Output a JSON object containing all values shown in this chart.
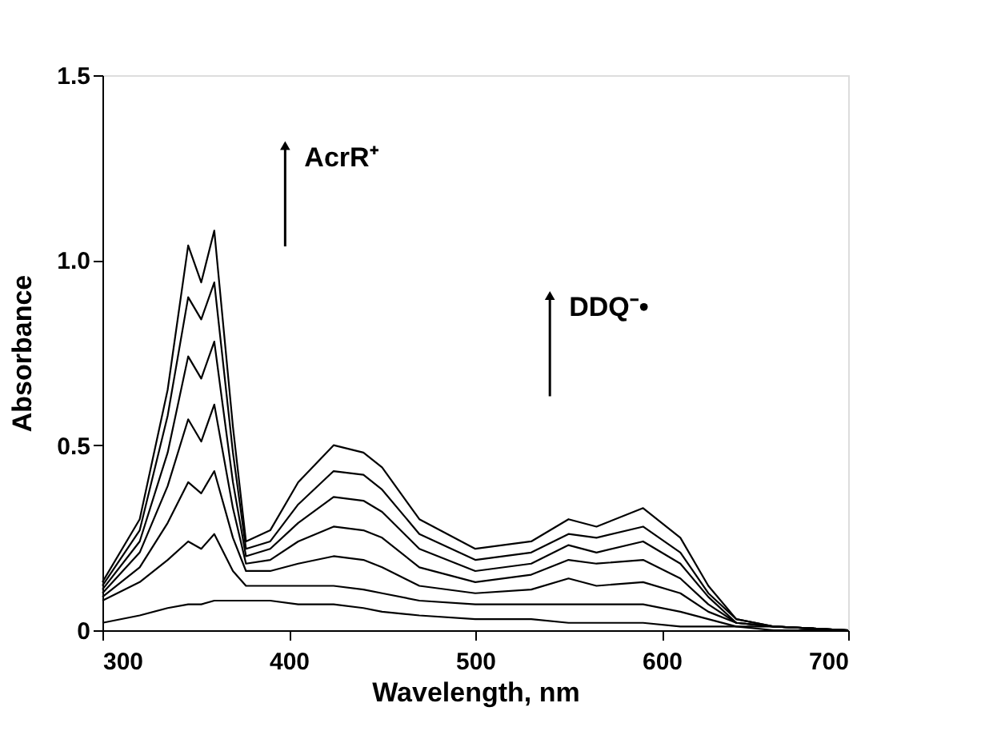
{
  "chart_data": {
    "type": "line",
    "xlabel": "Wavelength, nm",
    "ylabel": "Absorbance",
    "annotations": [
      "AcrR⁺",
      "DDQ⁻•"
    ],
    "x": [
      300,
      320,
      335,
      346,
      353,
      360,
      370,
      377,
      390,
      405,
      424,
      440,
      450,
      470,
      500,
      530,
      550,
      565,
      590,
      610,
      625,
      640,
      660,
      700
    ],
    "series": [
      {
        "color": "#000000",
        "values": [
          0.13,
          0.3,
          0.65,
          1.04,
          0.94,
          1.08,
          0.55,
          0.24,
          0.27,
          0.4,
          0.5,
          0.48,
          0.44,
          0.3,
          0.22,
          0.24,
          0.3,
          0.28,
          0.33,
          0.25,
          0.12,
          0.03,
          0.01,
          0
        ]
      },
      {
        "color": "#000000",
        "values": [
          0.12,
          0.27,
          0.58,
          0.9,
          0.84,
          0.94,
          0.48,
          0.22,
          0.24,
          0.34,
          0.43,
          0.42,
          0.38,
          0.26,
          0.19,
          0.21,
          0.26,
          0.25,
          0.28,
          0.21,
          0.1,
          0.03,
          0.01,
          0
        ]
      },
      {
        "color": "#000000",
        "values": [
          0.11,
          0.24,
          0.48,
          0.74,
          0.68,
          0.78,
          0.4,
          0.2,
          0.22,
          0.29,
          0.36,
          0.35,
          0.32,
          0.22,
          0.16,
          0.18,
          0.23,
          0.21,
          0.24,
          0.18,
          0.09,
          0.02,
          0.01,
          0
        ]
      },
      {
        "color": "#000000",
        "values": [
          0.1,
          0.21,
          0.39,
          0.57,
          0.51,
          0.61,
          0.33,
          0.18,
          0.19,
          0.24,
          0.28,
          0.27,
          0.25,
          0.17,
          0.13,
          0.15,
          0.19,
          0.18,
          0.19,
          0.14,
          0.07,
          0.02,
          0.01,
          0
        ]
      },
      {
        "color": "#000000",
        "values": [
          0.09,
          0.17,
          0.29,
          0.4,
          0.37,
          0.43,
          0.25,
          0.16,
          0.16,
          0.18,
          0.2,
          0.19,
          0.17,
          0.12,
          0.1,
          0.11,
          0.14,
          0.12,
          0.13,
          0.1,
          0.05,
          0.02,
          0.01,
          0
        ]
      },
      {
        "color": "#000000",
        "values": [
          0.08,
          0.13,
          0.19,
          0.24,
          0.22,
          0.26,
          0.16,
          0.12,
          0.12,
          0.12,
          0.12,
          0.11,
          0.1,
          0.08,
          0.07,
          0.07,
          0.07,
          0.07,
          0.07,
          0.05,
          0.03,
          0.01,
          0.01,
          0
        ]
      },
      {
        "color": "#000000",
        "values": [
          0.02,
          0.04,
          0.06,
          0.07,
          0.07,
          0.08,
          0.08,
          0.08,
          0.08,
          0.07,
          0.07,
          0.06,
          0.05,
          0.04,
          0.03,
          0.03,
          0.02,
          0.02,
          0.02,
          0.01,
          0.01,
          0.01,
          0,
          0
        ]
      }
    ],
    "xlim": [
      300,
      700
    ],
    "ylim": [
      0,
      1.5
    ],
    "xticks": [
      300,
      400,
      500,
      600,
      700
    ],
    "yticks": [
      0,
      {
        "value": 0.5,
        "label": "0.5"
      },
      {
        "value": 1,
        "label": "1.0"
      },
      {
        "value": 1.5,
        "label": "1.5"
      }
    ],
    "grid": false,
    "legend": false,
    "marker": "none",
    "line_style": "solid"
  }
}
